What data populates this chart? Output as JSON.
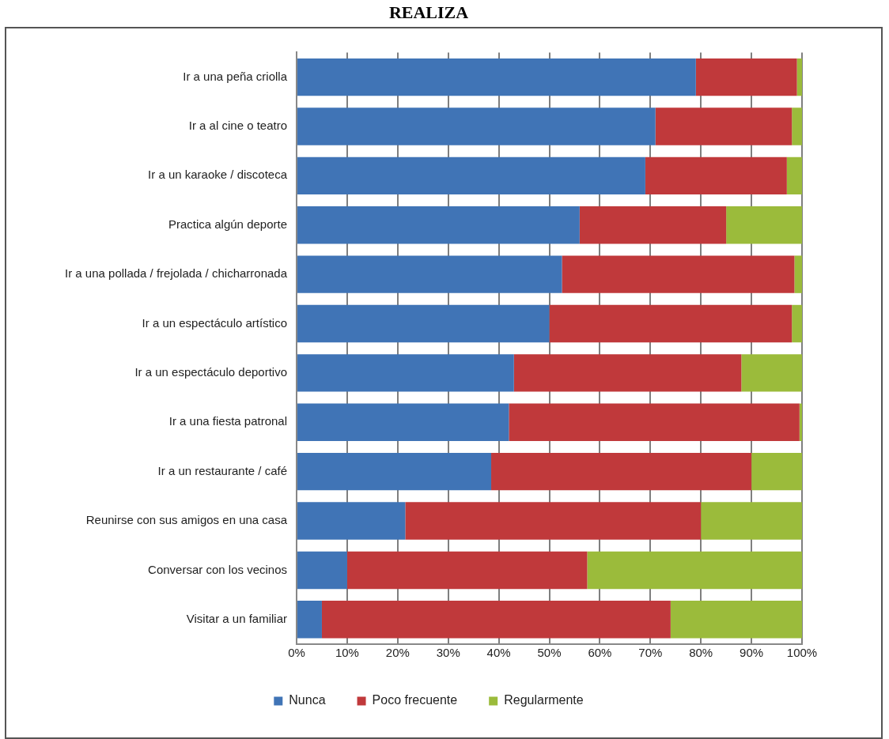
{
  "chart_data": {
    "type": "bar",
    "title": "REALIZA",
    "orientation": "horizontal",
    "stacked": true,
    "categories": [
      "Ir a una peña criolla",
      "Ir a al cine o teatro",
      "Ir a un karaoke / discoteca",
      "Practica algún deporte",
      "Ir a una pollada / frejolada / chicharronada",
      "Ir a un espectáculo artístico",
      "Ir a un espectáculo deportivo",
      "Ir a una fiesta patronal",
      "Ir a un restaurante / café",
      "Reunirse con sus amigos en una casa",
      "Conversar con los vecinos",
      "Visitar a un familiar"
    ],
    "series": [
      {
        "name": "Nunca",
        "color": "#4074b6",
        "values": [
          79,
          71,
          69,
          56,
          52.5,
          50,
          43,
          42,
          38.5,
          21.5,
          10,
          5
        ]
      },
      {
        "name": "Poco frecuente",
        "color": "#c0393b",
        "values": [
          20,
          27,
          28,
          29,
          46,
          48,
          45,
          57.5,
          51.5,
          58.5,
          47.5,
          69
        ]
      },
      {
        "name": "Regularmente",
        "color": "#9bbb3b",
        "values": [
          1,
          2,
          3,
          15,
          1.5,
          2,
          12,
          0.5,
          10,
          20,
          42.5,
          26
        ]
      }
    ],
    "xlim": [
      0,
      100
    ],
    "xticks": [
      {
        "value": 0,
        "label": "0%"
      },
      {
        "value": 10,
        "label": "10%"
      },
      {
        "value": 20,
        "label": "20%"
      },
      {
        "value": 30,
        "label": "30%"
      },
      {
        "value": 40,
        "label": "40%"
      },
      {
        "value": 50,
        "label": "50%"
      },
      {
        "value": 60,
        "label": "60%"
      },
      {
        "value": 70,
        "label": "70%"
      },
      {
        "value": 80,
        "label": "80%"
      },
      {
        "value": 90,
        "label": "90%"
      },
      {
        "value": 100,
        "label": "100%"
      }
    ],
    "grid": "x",
    "legend": "bottom"
  }
}
